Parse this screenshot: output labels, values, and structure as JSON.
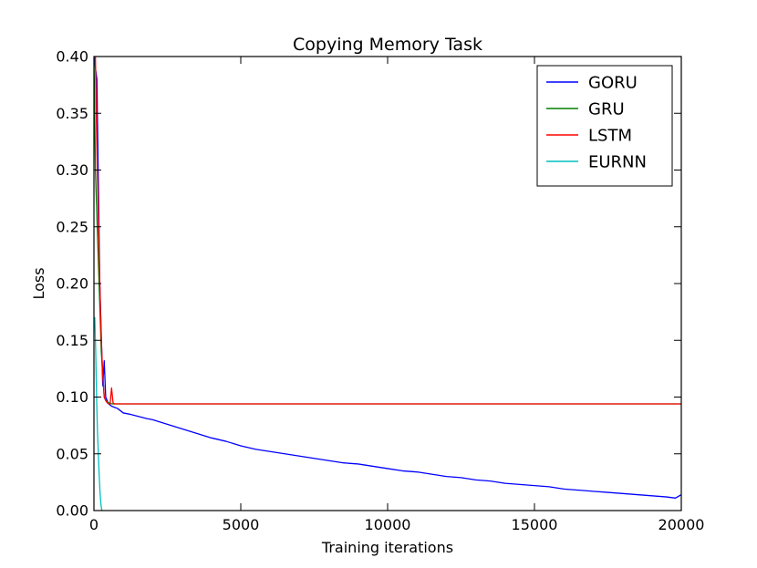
{
  "chart_data": {
    "type": "line",
    "title": "Copying Memory Task",
    "xlabel": "Training iterations",
    "ylabel": "Loss",
    "xlim": [
      0,
      20000
    ],
    "ylim": [
      0.0,
      0.4
    ],
    "xticks": [
      0,
      5000,
      10000,
      15000,
      20000
    ],
    "xtick_labels": [
      "0",
      "5000",
      "10000",
      "15000",
      "20000"
    ],
    "yticks": [
      0.0,
      0.05,
      0.1,
      0.15,
      0.2,
      0.25,
      0.3,
      0.35,
      0.4
    ],
    "ytick_labels": [
      "0.00",
      "0.05",
      "0.10",
      "0.15",
      "0.20",
      "0.25",
      "0.30",
      "0.35",
      "0.40"
    ],
    "grid": false,
    "legend_position": "top-right",
    "series": [
      {
        "name": "GORU",
        "color": "#0000ff",
        "x": [
          0,
          100,
          200,
          300,
          350,
          400,
          500,
          600,
          800,
          1000,
          1200,
          1500,
          1800,
          2000,
          2500,
          3000,
          3500,
          4000,
          4500,
          5000,
          5500,
          6000,
          6500,
          7000,
          7500,
          8000,
          8500,
          9000,
          9500,
          10000,
          10500,
          11000,
          11500,
          12000,
          12500,
          13000,
          13500,
          14000,
          14500,
          15000,
          15500,
          16000,
          16500,
          17000,
          17500,
          18000,
          18500,
          19000,
          19500,
          19800,
          20000
        ],
        "y": [
          0.4,
          0.38,
          0.2,
          0.11,
          0.132,
          0.1,
          0.094,
          0.092,
          0.09,
          0.086,
          0.085,
          0.083,
          0.081,
          0.08,
          0.076,
          0.072,
          0.068,
          0.064,
          0.061,
          0.057,
          0.054,
          0.052,
          0.05,
          0.048,
          0.046,
          0.044,
          0.042,
          0.041,
          0.039,
          0.037,
          0.035,
          0.034,
          0.032,
          0.03,
          0.029,
          0.027,
          0.026,
          0.024,
          0.023,
          0.022,
          0.021,
          0.019,
          0.018,
          0.017,
          0.016,
          0.015,
          0.014,
          0.013,
          0.012,
          0.011,
          0.014
        ]
      },
      {
        "name": "GRU",
        "color": "#008000",
        "x": [
          0,
          50,
          100,
          150,
          200,
          250,
          300,
          350,
          400,
          500,
          600,
          800,
          1000,
          5000,
          10000,
          15000,
          20000
        ],
        "y": [
          0.4,
          0.3,
          0.26,
          0.22,
          0.18,
          0.14,
          0.12,
          0.1,
          0.097,
          0.095,
          0.094,
          0.094,
          0.094,
          0.094,
          0.094,
          0.094,
          0.094
        ]
      },
      {
        "name": "LSTM",
        "color": "#ff0000",
        "x": [
          0,
          50,
          100,
          150,
          200,
          250,
          300,
          350,
          400,
          450,
          500,
          550,
          600,
          650,
          700,
          800,
          1000,
          5000,
          10000,
          15000,
          20000
        ],
        "y": [
          0.4,
          0.4,
          0.32,
          0.26,
          0.2,
          0.15,
          0.12,
          0.1,
          0.097,
          0.095,
          0.094,
          0.094,
          0.108,
          0.095,
          0.094,
          0.094,
          0.094,
          0.094,
          0.094,
          0.094,
          0.094
        ]
      },
      {
        "name": "EURNN",
        "color": "#00bfbf",
        "x": [
          0,
          30,
          60,
          90,
          120,
          150,
          180,
          210,
          240,
          270
        ],
        "y": [
          0.16,
          0.17,
          0.14,
          0.1,
          0.07,
          0.05,
          0.03,
          0.015,
          0.005,
          0.0
        ]
      }
    ]
  }
}
